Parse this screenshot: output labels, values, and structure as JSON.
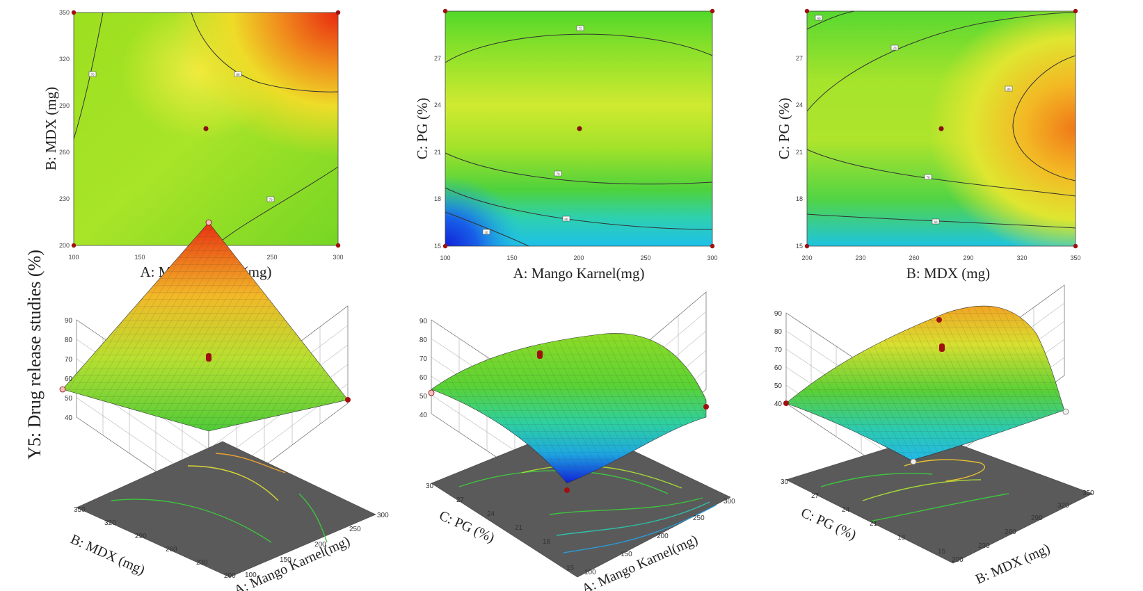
{
  "figure": {
    "shared_ylabel": "Y5: Drug release studies  (%)"
  },
  "chart_data": [
    {
      "type": "heatmap",
      "variant": "contour",
      "xlabel": "A: Mango Karnel(mg)",
      "ylabel": "B: MDX (mg)",
      "xticks": [
        "100",
        "150",
        "200",
        "250",
        "300"
      ],
      "yticks": [
        "200",
        "230",
        "260",
        "290",
        "320",
        "350"
      ],
      "xlim": [
        100,
        300
      ],
      "ylim": [
        200,
        350
      ],
      "center_point": [
        200,
        275
      ],
      "corner_points": [
        [
          100,
          200
        ],
        [
          300,
          200
        ],
        [
          100,
          350
        ],
        [
          300,
          350
        ]
      ],
      "contour_labels": [
        "70",
        "80",
        "70"
      ],
      "colors": {
        "low": "#2233dd",
        "mid": "#7ee01a",
        "high": "#e83010"
      }
    },
    {
      "type": "heatmap",
      "variant": "contour",
      "xlabel": "A: Mango Karnel(mg)",
      "ylabel": "C: PG (%)",
      "xticks": [
        "100",
        "150",
        "200",
        "250",
        "300"
      ],
      "yticks": [
        "15",
        "18",
        "21",
        "24",
        "27",
        "30"
      ],
      "xlim": [
        100,
        300
      ],
      "ylim": [
        15,
        30
      ],
      "center_point": [
        200,
        22.5
      ],
      "corner_points": [
        [
          100,
          15
        ],
        [
          300,
          15
        ],
        [
          100,
          30
        ],
        [
          300,
          30
        ]
      ],
      "contour_labels": [
        "75",
        "70",
        "60",
        "50"
      ]
    },
    {
      "type": "heatmap",
      "variant": "contour",
      "xlabel": "B: MDX (mg)",
      "ylabel": "C: PG (%)",
      "xticks": [
        "200",
        "230",
        "260",
        "290",
        "320",
        "350"
      ],
      "yticks": [
        "15",
        "18",
        "21",
        "24",
        "27",
        "30"
      ],
      "xlim": [
        200,
        350
      ],
      "ylim": [
        15,
        30
      ],
      "center_point": [
        275,
        22.5
      ],
      "corner_points": [
        [
          200,
          15
        ],
        [
          350,
          15
        ],
        [
          200,
          30
        ],
        [
          350,
          30
        ]
      ],
      "contour_labels": [
        "60",
        "70",
        "80",
        "70",
        "60"
      ]
    },
    {
      "type": "area",
      "variant": "surface-3d",
      "xlabel": "A: Mango Karnel(mg)",
      "ylabel": "B: MDX (mg)",
      "x_ticks": [
        "100",
        "150",
        "200",
        "250",
        "300"
      ],
      "y_ticks": [
        "200",
        "230",
        "260",
        "290",
        "320",
        "350"
      ],
      "z_ticks": [
        "40",
        "50",
        "60",
        "70",
        "80",
        "90"
      ],
      "zlim": [
        40,
        90
      ],
      "design_points": [
        {
          "a": 300,
          "b": 350,
          "y": 90
        },
        {
          "a": 100,
          "b": 350,
          "y": 63
        },
        {
          "a": 300,
          "b": 200,
          "y": 59
        },
        {
          "a": 200,
          "b": 275,
          "y": 76
        }
      ]
    },
    {
      "type": "area",
      "variant": "surface-3d",
      "xlabel": "A: Mango Karnel(mg)",
      "ylabel": "C: PG (%)",
      "x_ticks": [
        "100",
        "150",
        "200",
        "250",
        "300"
      ],
      "y_ticks": [
        "15",
        "18",
        "21",
        "24",
        "27",
        "30"
      ],
      "z_ticks": [
        "40",
        "50",
        "60",
        "70",
        "80",
        "90"
      ],
      "zlim": [
        40,
        90
      ],
      "design_points": [
        {
          "a": 100,
          "c": 15,
          "y": 43
        },
        {
          "a": 100,
          "c": 30,
          "y": 61
        },
        {
          "a": 300,
          "c": 15,
          "y": 56
        },
        {
          "a": 200,
          "c": 22.5,
          "y": 76
        }
      ]
    },
    {
      "type": "area",
      "variant": "surface-3d",
      "xlabel": "B: MDX (mg)",
      "ylabel": "C: PG (%)",
      "x_ticks": [
        "200",
        "230",
        "260",
        "290",
        "320",
        "350"
      ],
      "y_ticks": [
        "15",
        "18",
        "21",
        "24",
        "27",
        "30"
      ],
      "z_ticks": [
        "40",
        "50",
        "60",
        "70",
        "80",
        "90"
      ],
      "zlim": [
        40,
        90
      ],
      "design_points": [
        {
          "b": 350,
          "c": 30,
          "y": 84
        },
        {
          "b": 200,
          "c": 30,
          "y": 55
        },
        {
          "b": 350,
          "c": 15,
          "y": 54
        },
        {
          "b": 200,
          "c": 15,
          "y": 48
        },
        {
          "b": 275,
          "c": 22.5,
          "y": 77
        }
      ]
    }
  ]
}
